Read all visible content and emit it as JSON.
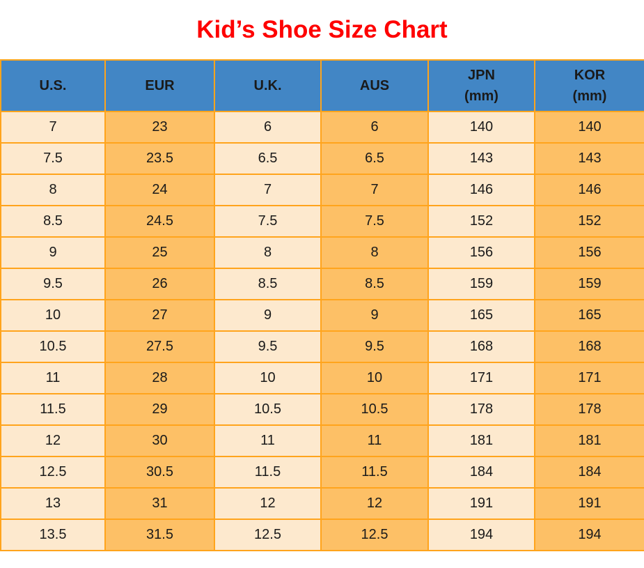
{
  "page": {
    "title": "Kid’s Shoe Size Chart"
  },
  "colors": {
    "title_red": "#FE0000",
    "header_blue": "#4286C5",
    "cell_cream": "#FDE9CE",
    "cell_orange": "#FDC066",
    "grid_orange": "#FFA41C",
    "text_black": "#1A1A1A"
  },
  "chart_data": {
    "type": "table",
    "title": "Kid’s Shoe Size Chart",
    "legend_position": "none",
    "grid": true,
    "columns": [
      {
        "label": "U.S.",
        "sublabel": ""
      },
      {
        "label": "EUR",
        "sublabel": ""
      },
      {
        "label": "U.K.",
        "sublabel": ""
      },
      {
        "label": "AUS",
        "sublabel": ""
      },
      {
        "label": "JPN",
        "sublabel": "(mm)"
      },
      {
        "label": "KOR",
        "sublabel": "(mm)"
      }
    ],
    "rows": [
      [
        "7",
        "23",
        "6",
        "6",
        "140",
        "140"
      ],
      [
        "7.5",
        "23.5",
        "6.5",
        "6.5",
        "143",
        "143"
      ],
      [
        "8",
        "24",
        "7",
        "7",
        "146",
        "146"
      ],
      [
        "8.5",
        "24.5",
        "7.5",
        "7.5",
        "152",
        "152"
      ],
      [
        "9",
        "25",
        "8",
        "8",
        "156",
        "156"
      ],
      [
        "9.5",
        "26",
        "8.5",
        "8.5",
        "159",
        "159"
      ],
      [
        "10",
        "27",
        "9",
        "9",
        "165",
        "165"
      ],
      [
        "10.5",
        "27.5",
        "9.5",
        "9.5",
        "168",
        "168"
      ],
      [
        "11",
        "28",
        "10",
        "10",
        "171",
        "171"
      ],
      [
        "11.5",
        "29",
        "10.5",
        "10.5",
        "178",
        "178"
      ],
      [
        "12",
        "30",
        "11",
        "11",
        "181",
        "181"
      ],
      [
        "12.5",
        "30.5",
        "11.5",
        "11.5",
        "184",
        "184"
      ],
      [
        "13",
        "31",
        "12",
        "12",
        "191",
        "191"
      ],
      [
        "13.5",
        "31.5",
        "12.5",
        "12.5",
        "194",
        "194"
      ]
    ]
  }
}
